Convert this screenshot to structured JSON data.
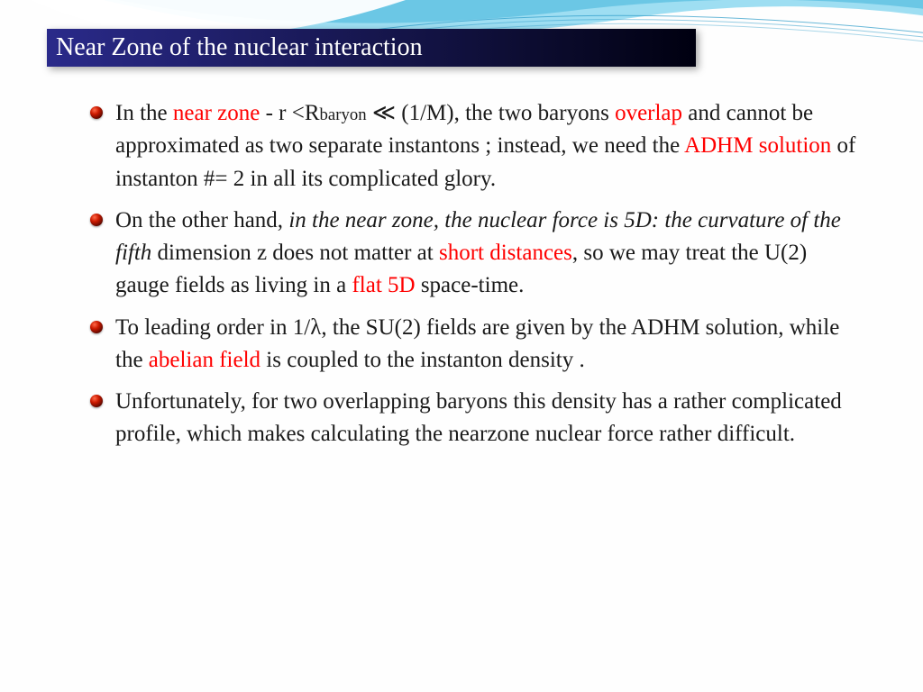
{
  "title": "Near Zone  of the nuclear interaction",
  "colors": {
    "highlight": "#ff0000",
    "title_bg_start": "#2a2a8a",
    "title_bg_end": "#000010",
    "title_text": "#ffffff",
    "body_text": "#1a1a1a",
    "bullet_gradient": [
      "#ff6a4a",
      "#cc1a00",
      "#6a0a00",
      "#2a0500"
    ],
    "swoosh_light": "#8dd8f0",
    "swoosh_dark": "#4ab8dc"
  },
  "typography": {
    "title_fontsize": 28,
    "body_fontsize": 25,
    "font_family": "Georgia, serif",
    "line_height": 1.45
  },
  "bullets": [
    {
      "segments": [
        {
          "t": "In the "
        },
        {
          "t": "near zone",
          "red": true
        },
        {
          "t": "  -  r <R"
        },
        {
          "t": "baryon",
          "sub": true
        },
        {
          "t": " ≪ (1/M), the two baryons "
        },
        {
          "t": "overlap",
          "red": true
        },
        {
          "t": " and cannot be approximated as two separate instantons ; instead, we need the "
        },
        {
          "t": "ADHM solution",
          "red": true
        },
        {
          "t": " of instanton #= 2 in all its complicated glory."
        }
      ]
    },
    {
      "segments": [
        {
          "t": "On the other hand, "
        },
        {
          "t": "in the near zone, the nuclear force is 5D: the curvature of the fifth ",
          "ital": true
        },
        {
          "t": "dimension z does not matter at "
        },
        {
          "t": "short distances",
          "red": true
        },
        {
          "t": ", so we may treat the U(2) gauge fields as living in a "
        },
        {
          "t": "flat 5D",
          "red": true
        },
        {
          "t": " space-time."
        }
      ]
    },
    {
      "segments": [
        {
          "t": "To leading order in 1/λ, the SU(2) fields are given by the ADHM solution, while the "
        },
        {
          "t": "abelian field ",
          "red": true
        },
        {
          "t": " is coupled to the instanton density ."
        }
      ]
    },
    {
      "segments": [
        {
          "t": "Unfortunately, for two overlapping baryons this density has a rather complicated profile, which makes calculating the nearzone nuclear force rather difficult."
        }
      ]
    }
  ]
}
